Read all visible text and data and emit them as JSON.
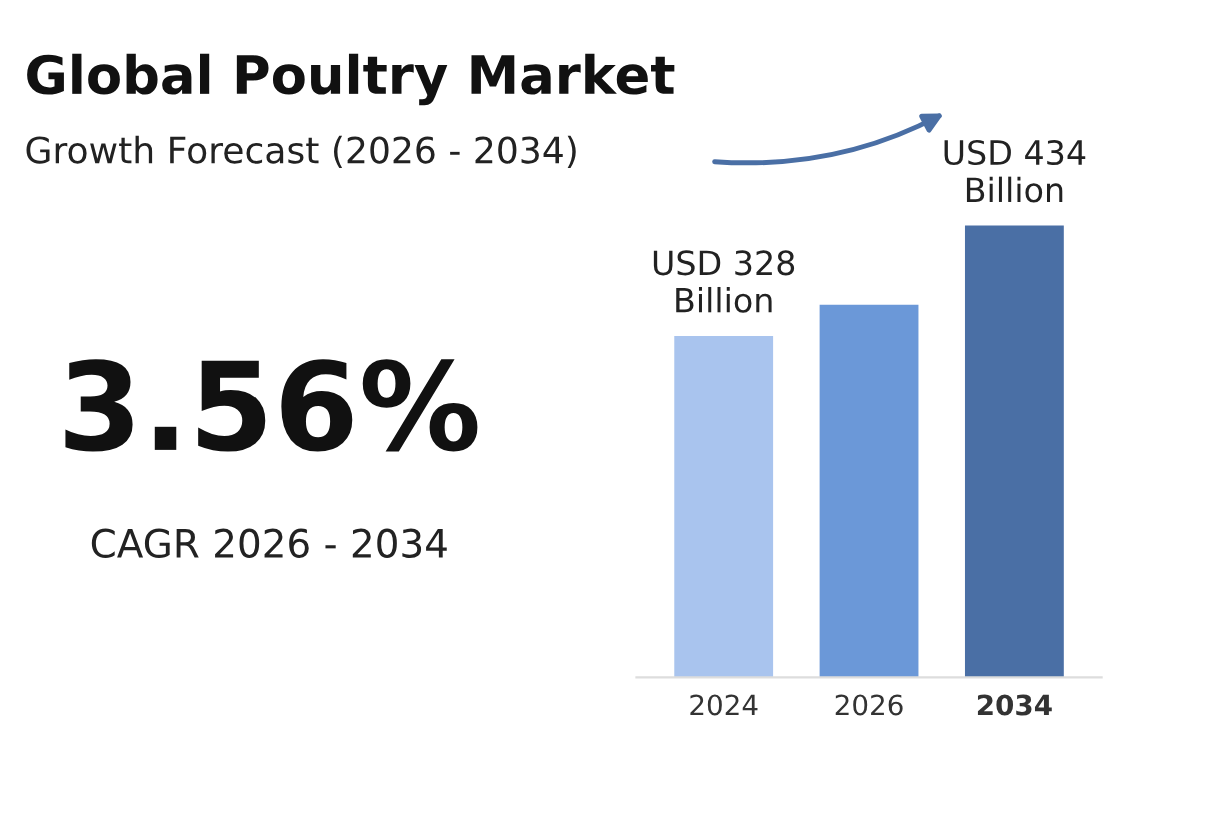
{
  "chart_data": {
    "type": "bar",
    "title": "Global Poultry Market",
    "subtitle": "Growth Forecast (2026 - 2034)",
    "categories": [
      "2024",
      "2026",
      "2034"
    ],
    "values": [
      328,
      358,
      434
    ],
    "colors": [
      "#a9c4ee",
      "#6b98d8",
      "#4a6fa5"
    ],
    "value_labels": [
      "USD 328\nBillion",
      null,
      "USD 434\nBillion"
    ],
    "annotations": [
      "3.56%",
      "CAGR 2026 - 2034"
    ],
    "grid": false
  }
}
